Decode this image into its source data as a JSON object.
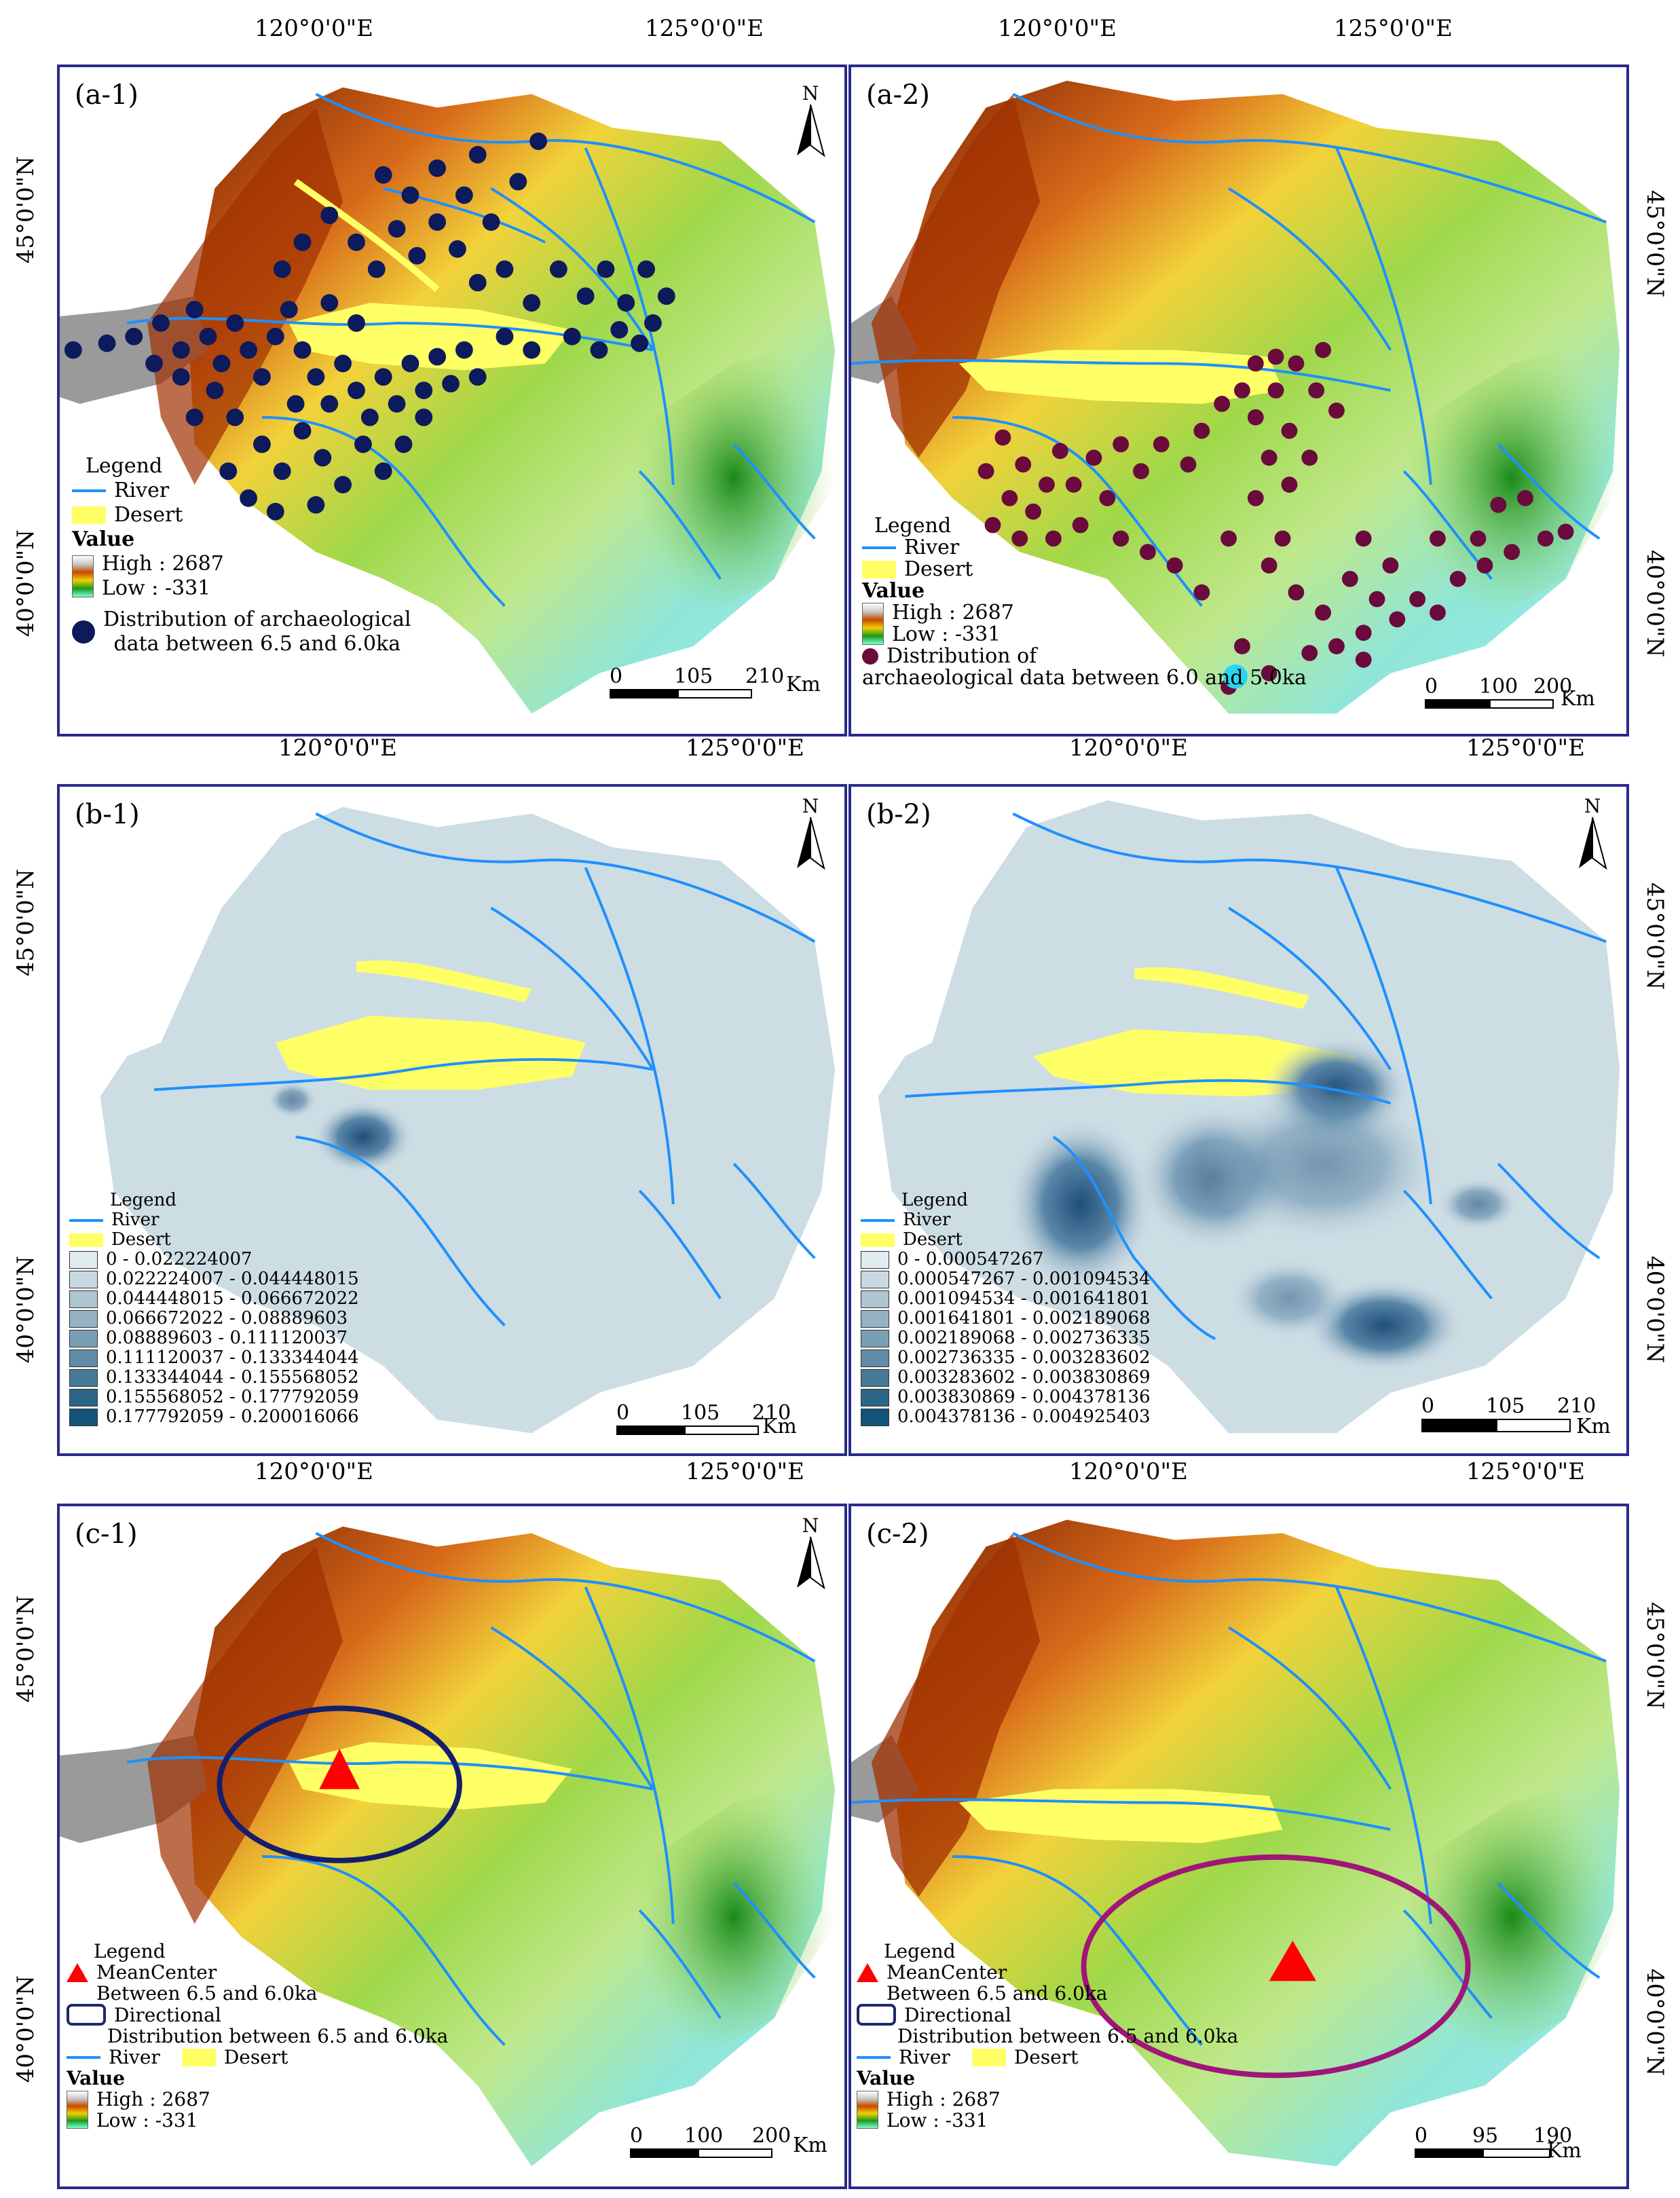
{
  "coordinates": {
    "lon_120": "120°0'0\"E",
    "lon_125": "125°0'0\"E",
    "lat_45": "45°0'0\"N",
    "lat_40": "40°0'0\"N"
  },
  "panels": {
    "a1": {
      "label": "(a-1)",
      "legend_title": "Legend",
      "river": "River",
      "desert": "Desert",
      "value_title": "Value",
      "high": "High : 2687",
      "low": "Low : -331",
      "points_label_1": "Distribution of archaeological",
      "points_label_2": "data between 6.5 and 6.0ka",
      "scale": [
        "0",
        "105",
        "210"
      ],
      "scale_unit": "Km",
      "point_color": "#0d1a5c"
    },
    "a2": {
      "label": "(a-2)",
      "legend_title": "Legend",
      "river": "River",
      "desert": "Desert",
      "value_title": "Value",
      "high": "High : 2687",
      "low": "Low : -331",
      "points_label_1": "Distribution of",
      "points_label_2": "archaeological data between 6.0 and 5.0ka",
      "scale": [
        "0",
        "100",
        "200"
      ],
      "scale_unit": "Km",
      "point_color": "#6b0a3c"
    },
    "b1": {
      "label": "(b-1)",
      "legend_title": "Legend",
      "river": "River",
      "desert": "Desert",
      "classes": [
        "0 - 0.022224007",
        "0.022224007 - 0.044448015",
        "0.044448015 - 0.066672022",
        "0.066672022 - 0.08889603",
        "0.08889603 - 0.111120037",
        "0.111120037 - 0.133344044",
        "0.133344044 - 0.155568052",
        "0.155568052 - 0.177792059",
        "0.177792059 - 0.200016066"
      ],
      "scale": [
        "0",
        "105",
        "210"
      ],
      "scale_unit": "Km"
    },
    "b2": {
      "label": "(b-2)",
      "legend_title": "Legend",
      "river": "River",
      "desert": "Desert",
      "classes": [
        "0 - 0.000547267",
        "0.000547267 - 0.001094534",
        "0.001094534 - 0.001641801",
        "0.001641801 - 0.002189068",
        "0.002189068 - 0.002736335",
        "0.002736335 - 0.003283602",
        "0.003283602 - 0.003830869",
        "0.003830869 - 0.004378136",
        "0.004378136 - 0.004925403"
      ],
      "scale": [
        "0",
        "105",
        "210"
      ],
      "scale_unit": "Km"
    },
    "c1": {
      "label": "(c-1)",
      "legend_title": "Legend",
      "mean_center_1": "MeanCenter",
      "mean_center_2": "Between 6.5 and 6.0ka",
      "directional_1": "Directional",
      "directional_2": "Distribution between 6.5 and 6.0ka",
      "river": "River",
      "desert": "Desert",
      "value_title": "Value",
      "high": "High : 2687",
      "low": "Low : -331",
      "scale": [
        "0",
        "100",
        "200"
      ],
      "scale_unit": "Km",
      "ellipse_color": "#141f6b"
    },
    "c2": {
      "label": "(c-2)",
      "legend_title": "Legend",
      "mean_center_1": "MeanCenter",
      "mean_center_2": "Between 6.5 and 6.0ka",
      "directional_1": "Directional",
      "directional_2": "Distribution between 6.5 and 6.0ka",
      "river": "River",
      "desert": "Desert",
      "value_title": "Value",
      "high": "High : 2687",
      "low": "Low : -331",
      "scale": [
        "0",
        "95",
        "190"
      ],
      "scale_unit": "Km",
      "ellipse_color": "#a0157a"
    }
  },
  "north_label": "N",
  "colors": {
    "river": "#1e90ff",
    "desert": "#ffff66",
    "kde_base": "#cddde4",
    "kde_dark": "#1f4e79",
    "mean_center": "#ff0000"
  }
}
